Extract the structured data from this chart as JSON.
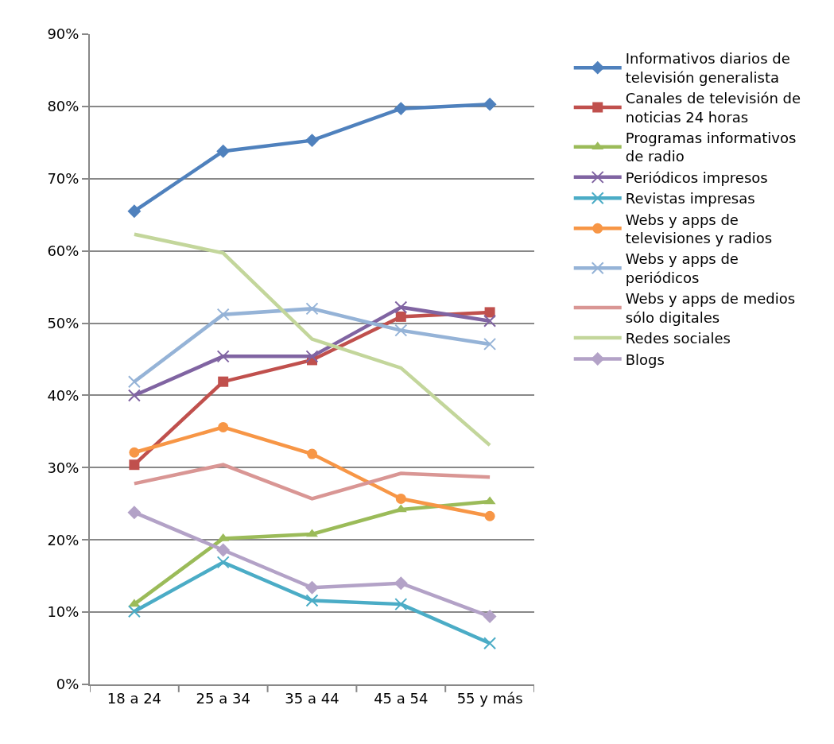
{
  "chart_data": {
    "type": "line",
    "categories": [
      "18 a 24",
      "25 a 34",
      "35 a 44",
      "45 a 54",
      "55 y más"
    ],
    "ylim": [
      0,
      90
    ],
    "yticks": [
      {
        "value": 0,
        "label": "0%"
      },
      {
        "value": 10,
        "label": "10%"
      },
      {
        "value": 20,
        "label": "20%"
      },
      {
        "value": 30,
        "label": "30%"
      },
      {
        "value": 40,
        "label": "40%"
      },
      {
        "value": 50,
        "label": "50%"
      },
      {
        "value": 60,
        "label": "60%"
      },
      {
        "value": 70,
        "label": "70%"
      },
      {
        "value": 80,
        "label": "80%"
      },
      {
        "value": 90,
        "label": "90%"
      }
    ],
    "grid": "y",
    "legend": "right",
    "line_style": "solid",
    "series": [
      {
        "name": "Informativos diarios de televisión generalista",
        "color": "#4f81bd",
        "marker": "diamond",
        "values": [
          65.5,
          73.8,
          75.3,
          79.7,
          80.3
        ]
      },
      {
        "name": "Canales de televisión de noticias 24 horas",
        "color": "#c0504d",
        "marker": "square",
        "values": [
          30.4,
          41.9,
          44.9,
          50.9,
          51.5
        ]
      },
      {
        "name": "Programas informativos de radio",
        "color": "#9bbb59",
        "marker": "triangle",
        "values": [
          11.1,
          20.2,
          20.8,
          24.2,
          25.3
        ]
      },
      {
        "name": "Periódicos impresos",
        "color": "#8064a2",
        "marker": "cross",
        "values": [
          40.0,
          45.4,
          45.4,
          52.2,
          50.3
        ]
      },
      {
        "name": "Revistas impresas",
        "color": "#4bacc6",
        "marker": "cross",
        "values": [
          10.1,
          16.9,
          11.6,
          11.1,
          5.7
        ]
      },
      {
        "name": "Webs y apps de televisiones y radios",
        "color": "#f79646",
        "marker": "circle",
        "values": [
          32.1,
          35.6,
          31.9,
          25.7,
          23.3
        ]
      },
      {
        "name": "Webs y apps de periódicos",
        "color": "#95b3d7",
        "marker": "cross",
        "values": [
          41.9,
          51.2,
          52.0,
          49.0,
          47.1
        ]
      },
      {
        "name": "Webs y apps de medios sólo digitales",
        "color": "#d99694",
        "marker": "none",
        "values": [
          27.8,
          30.4,
          25.7,
          29.2,
          28.7
        ]
      },
      {
        "name": "Redes sociales",
        "color": "#c3d69b",
        "marker": "none",
        "values": [
          62.3,
          59.7,
          47.8,
          43.8,
          33.1
        ]
      },
      {
        "name": "Blogs",
        "color": "#b3a2c7",
        "marker": "diamond",
        "values": [
          23.8,
          18.6,
          13.4,
          14.0,
          9.4
        ]
      }
    ]
  }
}
